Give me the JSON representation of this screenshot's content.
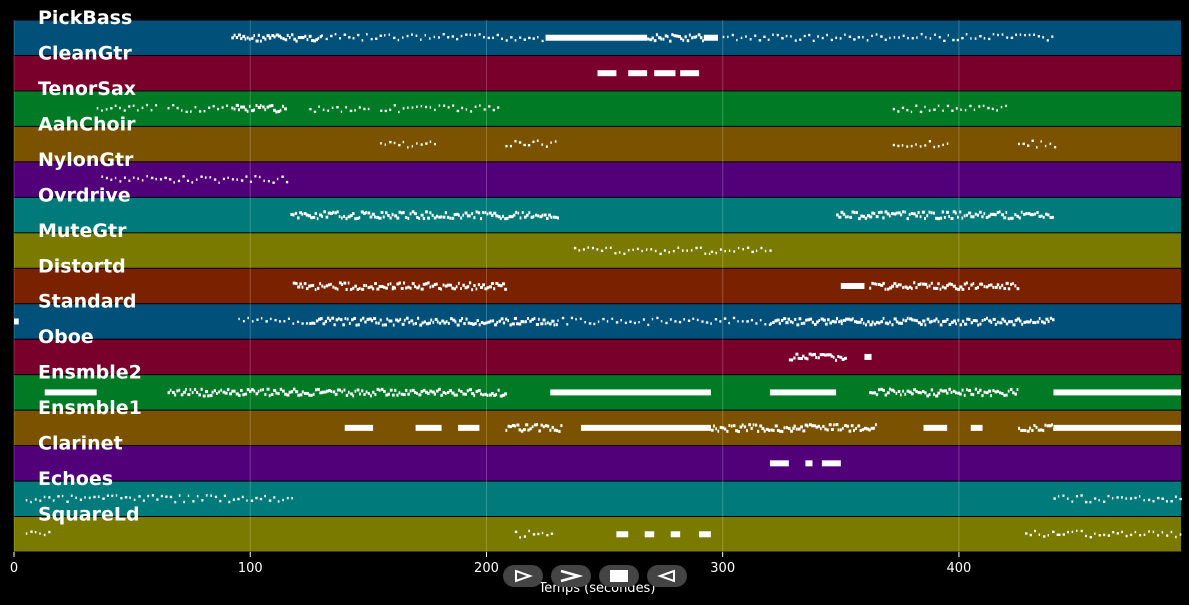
{
  "window": {
    "background": "#000000"
  },
  "chart_data": {
    "type": "piano-roll",
    "xlabel": "Temps (secondes)",
    "xlim": [
      0,
      494
    ],
    "xticks": [
      0,
      100,
      200,
      300,
      400
    ],
    "grid": true,
    "tracks": [
      {
        "name": "PickBass",
        "color": "#00507a",
        "segments": [
          [
            92,
            108,
            "dense"
          ],
          [
            108,
            130,
            "dense"
          ],
          [
            130,
            225,
            "sparse"
          ],
          [
            225,
            268,
            "solid"
          ],
          [
            268,
            292,
            "dense"
          ],
          [
            292,
            298,
            "solid"
          ],
          [
            300,
            440,
            "sparse"
          ]
        ]
      },
      {
        "name": "CleanGtr",
        "color": "#78002a",
        "segments": [
          [
            247,
            255,
            "solid"
          ],
          [
            260,
            268,
            "solid"
          ],
          [
            271,
            280,
            "solid"
          ],
          [
            282,
            290,
            "solid"
          ]
        ]
      },
      {
        "name": "TenorSax",
        "color": "#007a25",
        "segments": [
          [
            35,
            60,
            "sparse"
          ],
          [
            65,
            90,
            "sparse"
          ],
          [
            92,
            115,
            "dense"
          ],
          [
            125,
            150,
            "sparse"
          ],
          [
            155,
            205,
            "sparse"
          ],
          [
            372,
            420,
            "sparse"
          ]
        ]
      },
      {
        "name": "AahChoir",
        "color": "#7a5200",
        "segments": [
          [
            155,
            178,
            "sparse"
          ],
          [
            208,
            230,
            "sparse"
          ],
          [
            372,
            395,
            "sparse"
          ],
          [
            425,
            442,
            "sparse"
          ]
        ]
      },
      {
        "name": "NylonGtr",
        "color": "#52007a",
        "segments": [
          [
            37,
            117,
            "sparse"
          ]
        ]
      },
      {
        "name": "Ovrdrive",
        "color": "#007a7a",
        "segments": [
          [
            117,
            160,
            "dense"
          ],
          [
            160,
            230,
            "dense"
          ],
          [
            348,
            440,
            "dense"
          ]
        ]
      },
      {
        "name": "MuteGtr",
        "color": "#7a7a00",
        "segments": [
          [
            237,
            295,
            "sparse"
          ],
          [
            295,
            320,
            "sparse"
          ]
        ]
      },
      {
        "name": "Distortd",
        "color": "#7a2200",
        "segments": [
          [
            118,
            160,
            "dense"
          ],
          [
            160,
            208,
            "dense"
          ],
          [
            350,
            360,
            "solid"
          ],
          [
            362,
            425,
            "dense"
          ]
        ]
      },
      {
        "name": "Standard",
        "color": "#00507a",
        "segments": [
          [
            0,
            2,
            "solid"
          ],
          [
            95,
            125,
            "sparse"
          ],
          [
            125,
            230,
            "dense"
          ],
          [
            230,
            320,
            "sparse"
          ],
          [
            320,
            350,
            "dense"
          ],
          [
            350,
            440,
            "dense"
          ]
        ]
      },
      {
        "name": "Oboe",
        "color": "#78002a",
        "segments": [
          [
            328,
            352,
            "dense"
          ],
          [
            360,
            363,
            "solid"
          ]
        ]
      },
      {
        "name": "Ensmble2",
        "color": "#007a25",
        "segments": [
          [
            13,
            35,
            "solid"
          ],
          [
            65,
            208,
            "dense"
          ],
          [
            227,
            295,
            "solid"
          ],
          [
            320,
            348,
            "solid"
          ],
          [
            362,
            425,
            "dense"
          ],
          [
            440,
            494,
            "solid"
          ]
        ]
      },
      {
        "name": "Ensmble1",
        "color": "#7a5200",
        "segments": [
          [
            140,
            152,
            "solid"
          ],
          [
            170,
            181,
            "solid"
          ],
          [
            188,
            197,
            "solid"
          ],
          [
            208,
            232,
            "dense"
          ],
          [
            240,
            295,
            "solid"
          ],
          [
            295,
            330,
            "dense"
          ],
          [
            330,
            365,
            "dense"
          ],
          [
            385,
            395,
            "solid"
          ],
          [
            405,
            410,
            "solid"
          ],
          [
            425,
            440,
            "dense"
          ],
          [
            440,
            494,
            "solid"
          ]
        ]
      },
      {
        "name": "Clarinet",
        "color": "#52007a",
        "segments": [
          [
            320,
            328,
            "solid"
          ],
          [
            335,
            338,
            "solid"
          ],
          [
            342,
            350,
            "solid"
          ]
        ]
      },
      {
        "name": "Echoes",
        "color": "#007a7a",
        "segments": [
          [
            5,
            118,
            "sparse"
          ],
          [
            440,
            494,
            "sparse"
          ]
        ]
      },
      {
        "name": "SquareLd",
        "color": "#7a7a00",
        "segments": [
          [
            5,
            15,
            "sparse"
          ],
          [
            212,
            228,
            "sparse"
          ],
          [
            255,
            260,
            "solid"
          ],
          [
            267,
            271,
            "solid"
          ],
          [
            278,
            282,
            "solid"
          ],
          [
            290,
            295,
            "solid"
          ],
          [
            428,
            442,
            "sparse"
          ],
          [
            442,
            494,
            "sparse"
          ]
        ]
      }
    ]
  },
  "controls": {
    "play": "play-icon",
    "fast_forward": "fast-forward-icon",
    "stop": "stop-icon",
    "rewind": "rewind-icon"
  }
}
